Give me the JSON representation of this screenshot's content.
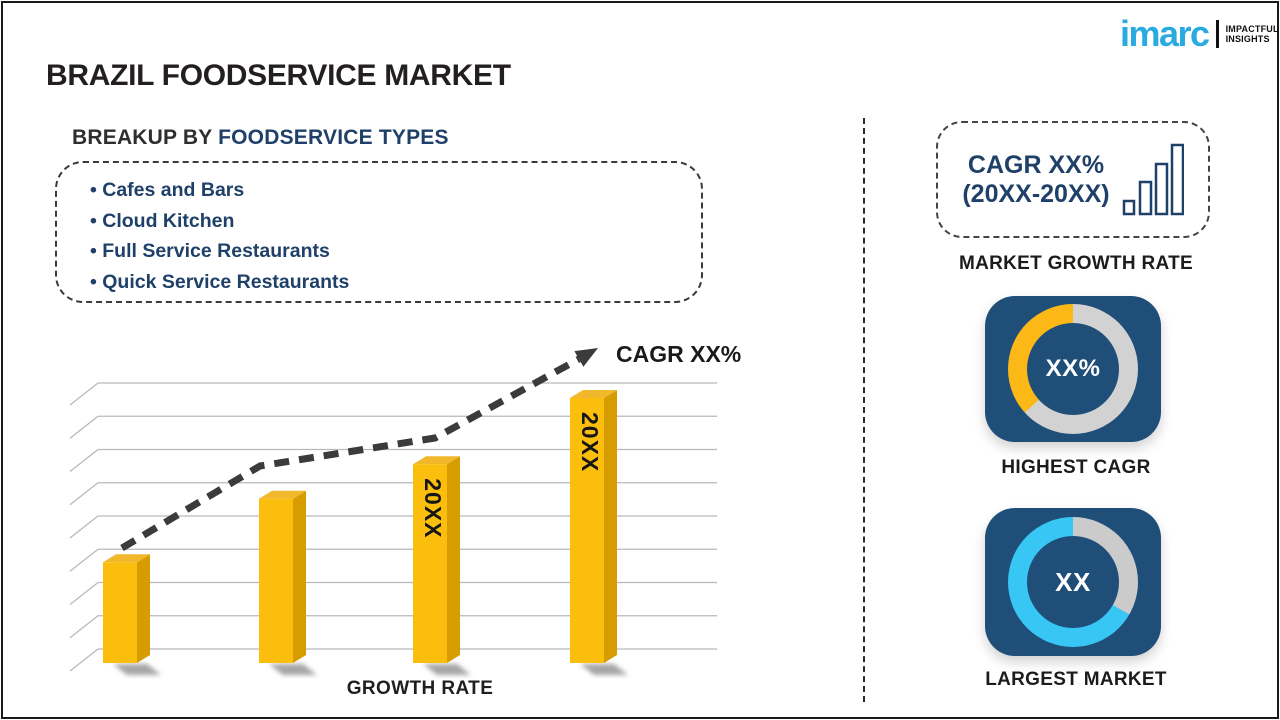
{
  "page": {
    "title": "BRAZIL FOODSERVICE MARKET"
  },
  "logo": {
    "brand": "imarc",
    "tagline_line1": "IMPACTFUL",
    "tagline_line2": "INSIGHTS",
    "brand_color": "#29ABE2"
  },
  "breakup": {
    "heading_prefix": "BREAKUP BY ",
    "heading_highlight": "FOODSERVICE TYPES",
    "items": [
      "Cafes and Bars",
      "Cloud Kitchen",
      "Full Service Restaurants",
      "Quick Service Restaurants"
    ]
  },
  "chart_data": {
    "type": "bar",
    "categories": [
      "",
      "",
      "20XX",
      "20XX"
    ],
    "values": [
      38,
      62,
      75,
      100
    ],
    "ylim": [
      0,
      100
    ],
    "xlabel": "GROWTH RATE",
    "trend_label": "CAGR XX%",
    "trend_style": "dashed-rising-arrow",
    "gridlines": 9,
    "bar_colors": {
      "front": "#FCBE0D",
      "top": "#F1B82B",
      "side": "#D69C00"
    },
    "bar_label_color": "#161616",
    "trend_color": "#3b3b3b"
  },
  "panel": {
    "cagr_box": {
      "line1": "CAGR XX%",
      "line2": "(20XX-20XX)"
    },
    "market_growth_rate_label": "MARKET GROWTH RATE",
    "highest_cagr": {
      "center_value": "XX%",
      "caption": "HIGHEST CAGR",
      "tile_color": "#1F4E79",
      "ring_color": "#D2D2D2",
      "arc_color": "#FBB817",
      "arc_start_deg": 228,
      "arc_end_deg": 360
    },
    "largest_market": {
      "center_value": "XX",
      "caption": "LARGEST MARKET",
      "tile_color": "#1F4E79",
      "ring_color": "#CBCBCB",
      "arc_color": "#38C6F4",
      "gray_start_deg": 0,
      "gray_end_deg": 120
    }
  }
}
